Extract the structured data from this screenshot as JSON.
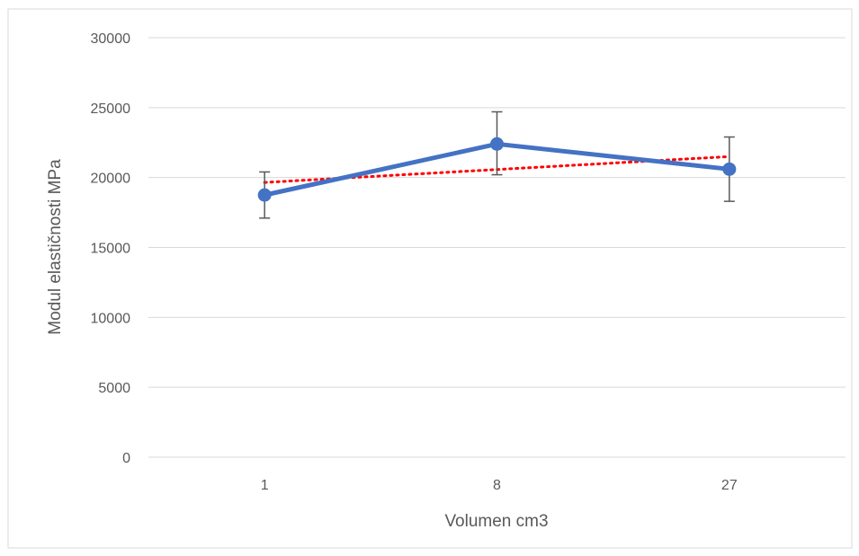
{
  "chart_data": {
    "type": "line",
    "title": "",
    "xlabel": "Volumen cm3",
    "ylabel": "Modul elastičnosti MPa",
    "categories": [
      "1",
      "8",
      "27"
    ],
    "series": [
      {
        "values": [
          18750,
          22400,
          20600
        ],
        "error_upper": [
          20400,
          24700,
          22900
        ],
        "error_lower": [
          17100,
          20200,
          18300
        ],
        "color": "#4472C4",
        "style": "solid-with-markers"
      }
    ],
    "trendline": {
      "kind": "linear",
      "values": [
        19650,
        20580,
        21500
      ],
      "color": "#FF0000",
      "style": "dotted"
    },
    "ylim": [
      0,
      30000
    ],
    "yticks": [
      0,
      5000,
      10000,
      15000,
      20000,
      25000,
      30000
    ],
    "grid": true,
    "gridline_color": "#D9D9D9",
    "legend": "none"
  }
}
